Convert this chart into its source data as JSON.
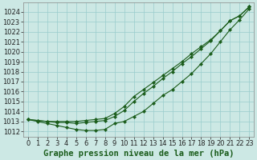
{
  "background_color": "#cce8e4",
  "grid_color": "#99cccc",
  "line_color": "#1a5c1a",
  "x": [
    0,
    1,
    2,
    3,
    4,
    5,
    6,
    7,
    8,
    9,
    10,
    11,
    12,
    13,
    14,
    15,
    16,
    17,
    18,
    19,
    20,
    21,
    22,
    23
  ],
  "line_top": [
    1013.2,
    1013.1,
    1013.0,
    1013.0,
    1013.0,
    1013.0,
    1013.1,
    1013.2,
    1013.3,
    1013.8,
    1014.5,
    1015.5,
    1016.2,
    1016.9,
    1017.6,
    1018.3,
    1019.0,
    1019.8,
    1020.5,
    1021.2,
    1022.1,
    1023.1,
    1023.6,
    1024.5
  ],
  "line_mid": [
    1013.2,
    1013.1,
    1013.0,
    1012.9,
    1012.9,
    1012.8,
    1012.9,
    1013.0,
    1013.1,
    1013.5,
    1014.1,
    1015.0,
    1015.8,
    1016.5,
    1017.3,
    1018.0,
    1018.8,
    1019.5,
    1020.3,
    1021.1,
    1022.1,
    1023.1,
    1023.6,
    1024.5
  ],
  "line_bot": [
    1013.2,
    1013.0,
    1012.8,
    1012.6,
    1012.4,
    1012.2,
    1012.1,
    1012.1,
    1012.2,
    1012.8,
    1013.0,
    1013.5,
    1014.0,
    1014.8,
    1015.6,
    1016.2,
    1017.0,
    1017.8,
    1018.8,
    1019.8,
    1021.0,
    1022.2,
    1023.2,
    1024.3
  ],
  "ylim": [
    1011.5,
    1024.9
  ],
  "yticks": [
    1012,
    1013,
    1014,
    1015,
    1016,
    1017,
    1018,
    1019,
    1020,
    1021,
    1022,
    1023,
    1024
  ],
  "xlim": [
    -0.5,
    23.5
  ],
  "xticks": [
    0,
    1,
    2,
    3,
    4,
    5,
    6,
    7,
    8,
    9,
    10,
    11,
    12,
    13,
    14,
    15,
    16,
    17,
    18,
    19,
    20,
    21,
    22,
    23
  ],
  "xlabel": "Graphe pression niveau de la mer (hPa)",
  "xlabel_fontsize": 7.5,
  "tick_fontsize": 6,
  "marker_size": 2.2,
  "linewidth": 0.8
}
